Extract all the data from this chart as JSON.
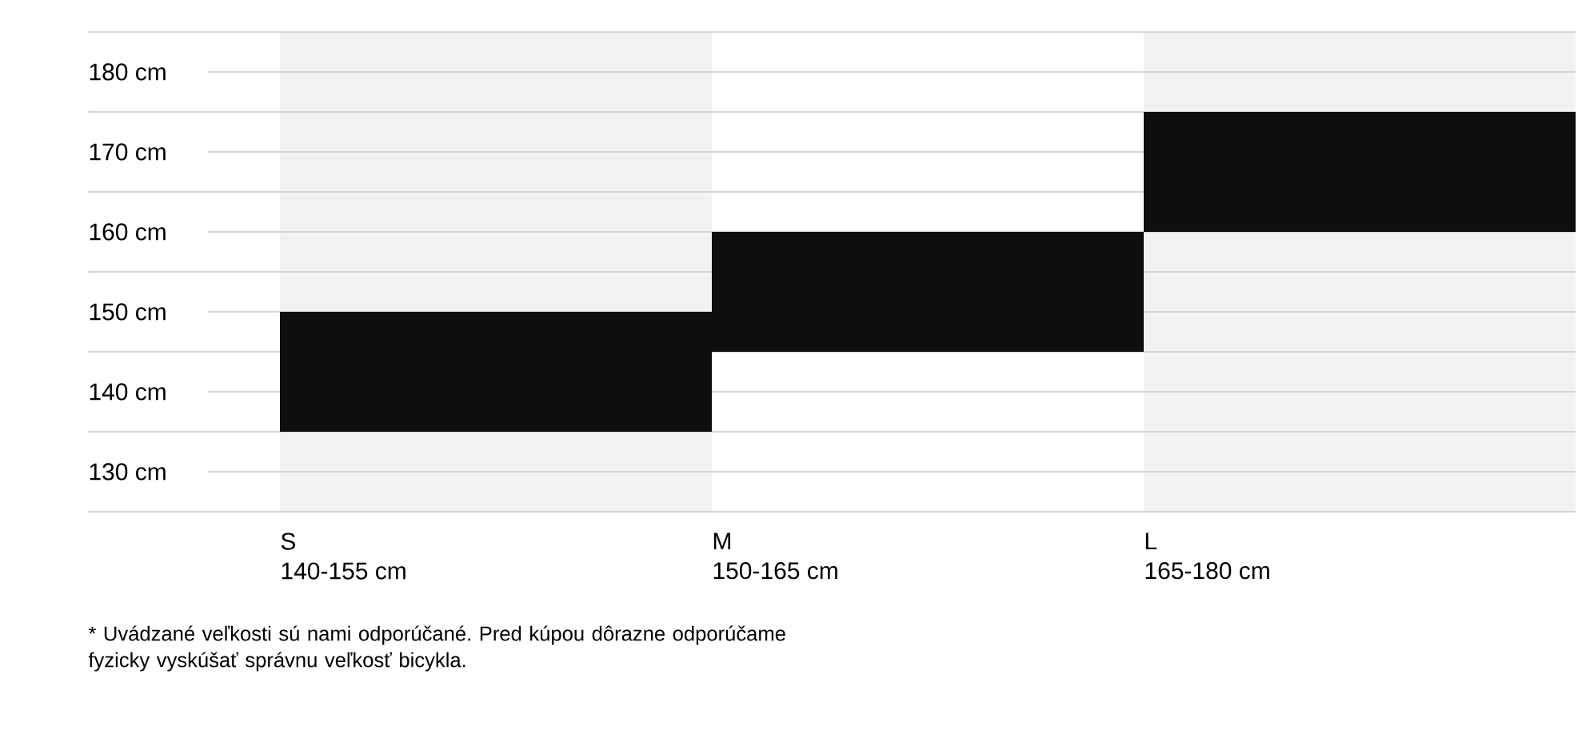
{
  "chart_data": {
    "type": "bar",
    "categories": [
      "S\n140-155 cm",
      "M\n150-165 cm",
      "L\n165-180 cm"
    ],
    "base": [
      135,
      145,
      160
    ],
    "values": [
      15,
      15,
      15
    ],
    "color": "#0d0f0e",
    "ylim": [
      125,
      185
    ],
    "yticks": [
      {
        "value": 125,
        "label": null
      },
      {
        "value": 130,
        "label": "130 cm"
      },
      {
        "value": 135,
        "label": null
      },
      {
        "value": 140,
        "label": "140 cm"
      },
      {
        "value": 145,
        "label": null
      },
      {
        "value": 150,
        "label": "150 cm"
      },
      {
        "value": 155,
        "label": null
      },
      {
        "value": 160,
        "label": "160 cm"
      },
      {
        "value": 165,
        "label": null
      },
      {
        "value": 170,
        "label": "170 cm"
      },
      {
        "value": 175,
        "label": null
      },
      {
        "value": 180,
        "label": "180 cm"
      },
      {
        "value": 185,
        "label": null
      }
    ],
    "grid": "y",
    "annotations": [
      "* Uvádzané veľkosti sú nami odporúčané. Pred kúpou dôrazne odporúčame fyzicky vyskúšať správnu veľkosť bicykla."
    ]
  }
}
